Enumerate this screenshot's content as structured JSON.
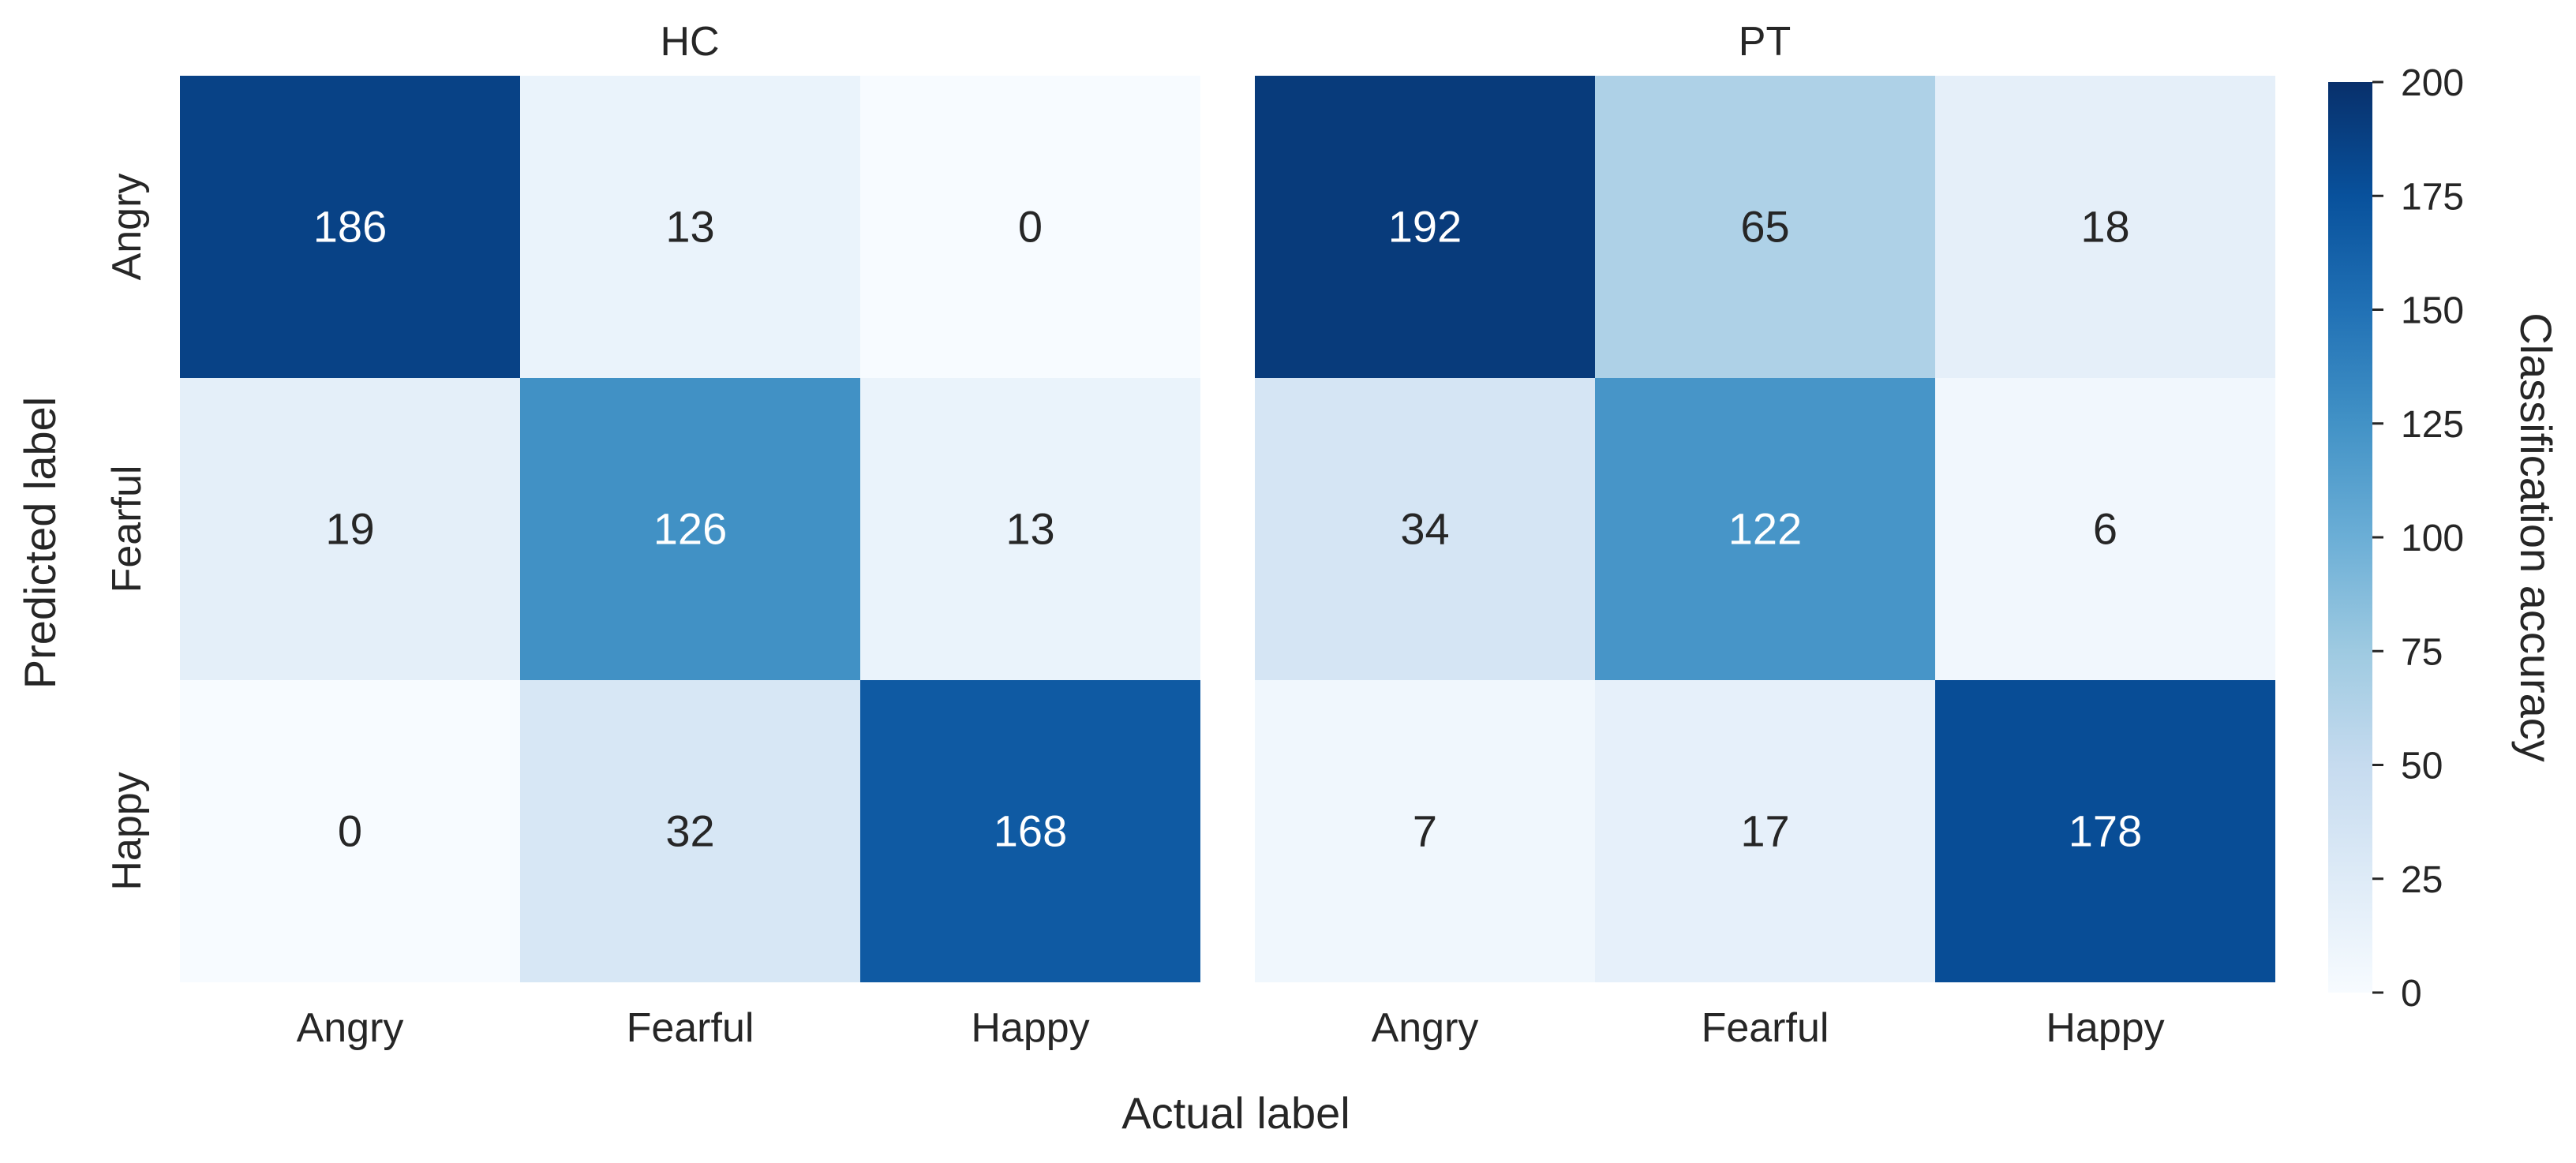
{
  "chart_data": {
    "type": "heatmap",
    "xlabel": "Actual label",
    "ylabel": "Predicted label",
    "colorbar": {
      "label": "Classification accuracy",
      "range": [
        0,
        200
      ],
      "ticks": [
        0,
        25,
        50,
        75,
        100,
        125,
        150,
        175,
        200
      ]
    },
    "colormap": {
      "name": "Blues",
      "stops": [
        "#f7fbff",
        "#deebf7",
        "#c6dbef",
        "#9ecae1",
        "#6baed6",
        "#4292c6",
        "#2171b5",
        "#08519c",
        "#08306b"
      ]
    },
    "x_categories": [
      "Angry",
      "Fearful",
      "Happy"
    ],
    "y_categories": [
      "Angry",
      "Fearful",
      "Happy"
    ],
    "panels": [
      {
        "title": "HC",
        "values": [
          [
            186,
            13,
            0
          ],
          [
            19,
            126,
            13
          ],
          [
            0,
            32,
            168
          ]
        ]
      },
      {
        "title": "PT",
        "values": [
          [
            192,
            65,
            18
          ],
          [
            34,
            122,
            6
          ],
          [
            7,
            17,
            178
          ]
        ]
      }
    ]
  }
}
